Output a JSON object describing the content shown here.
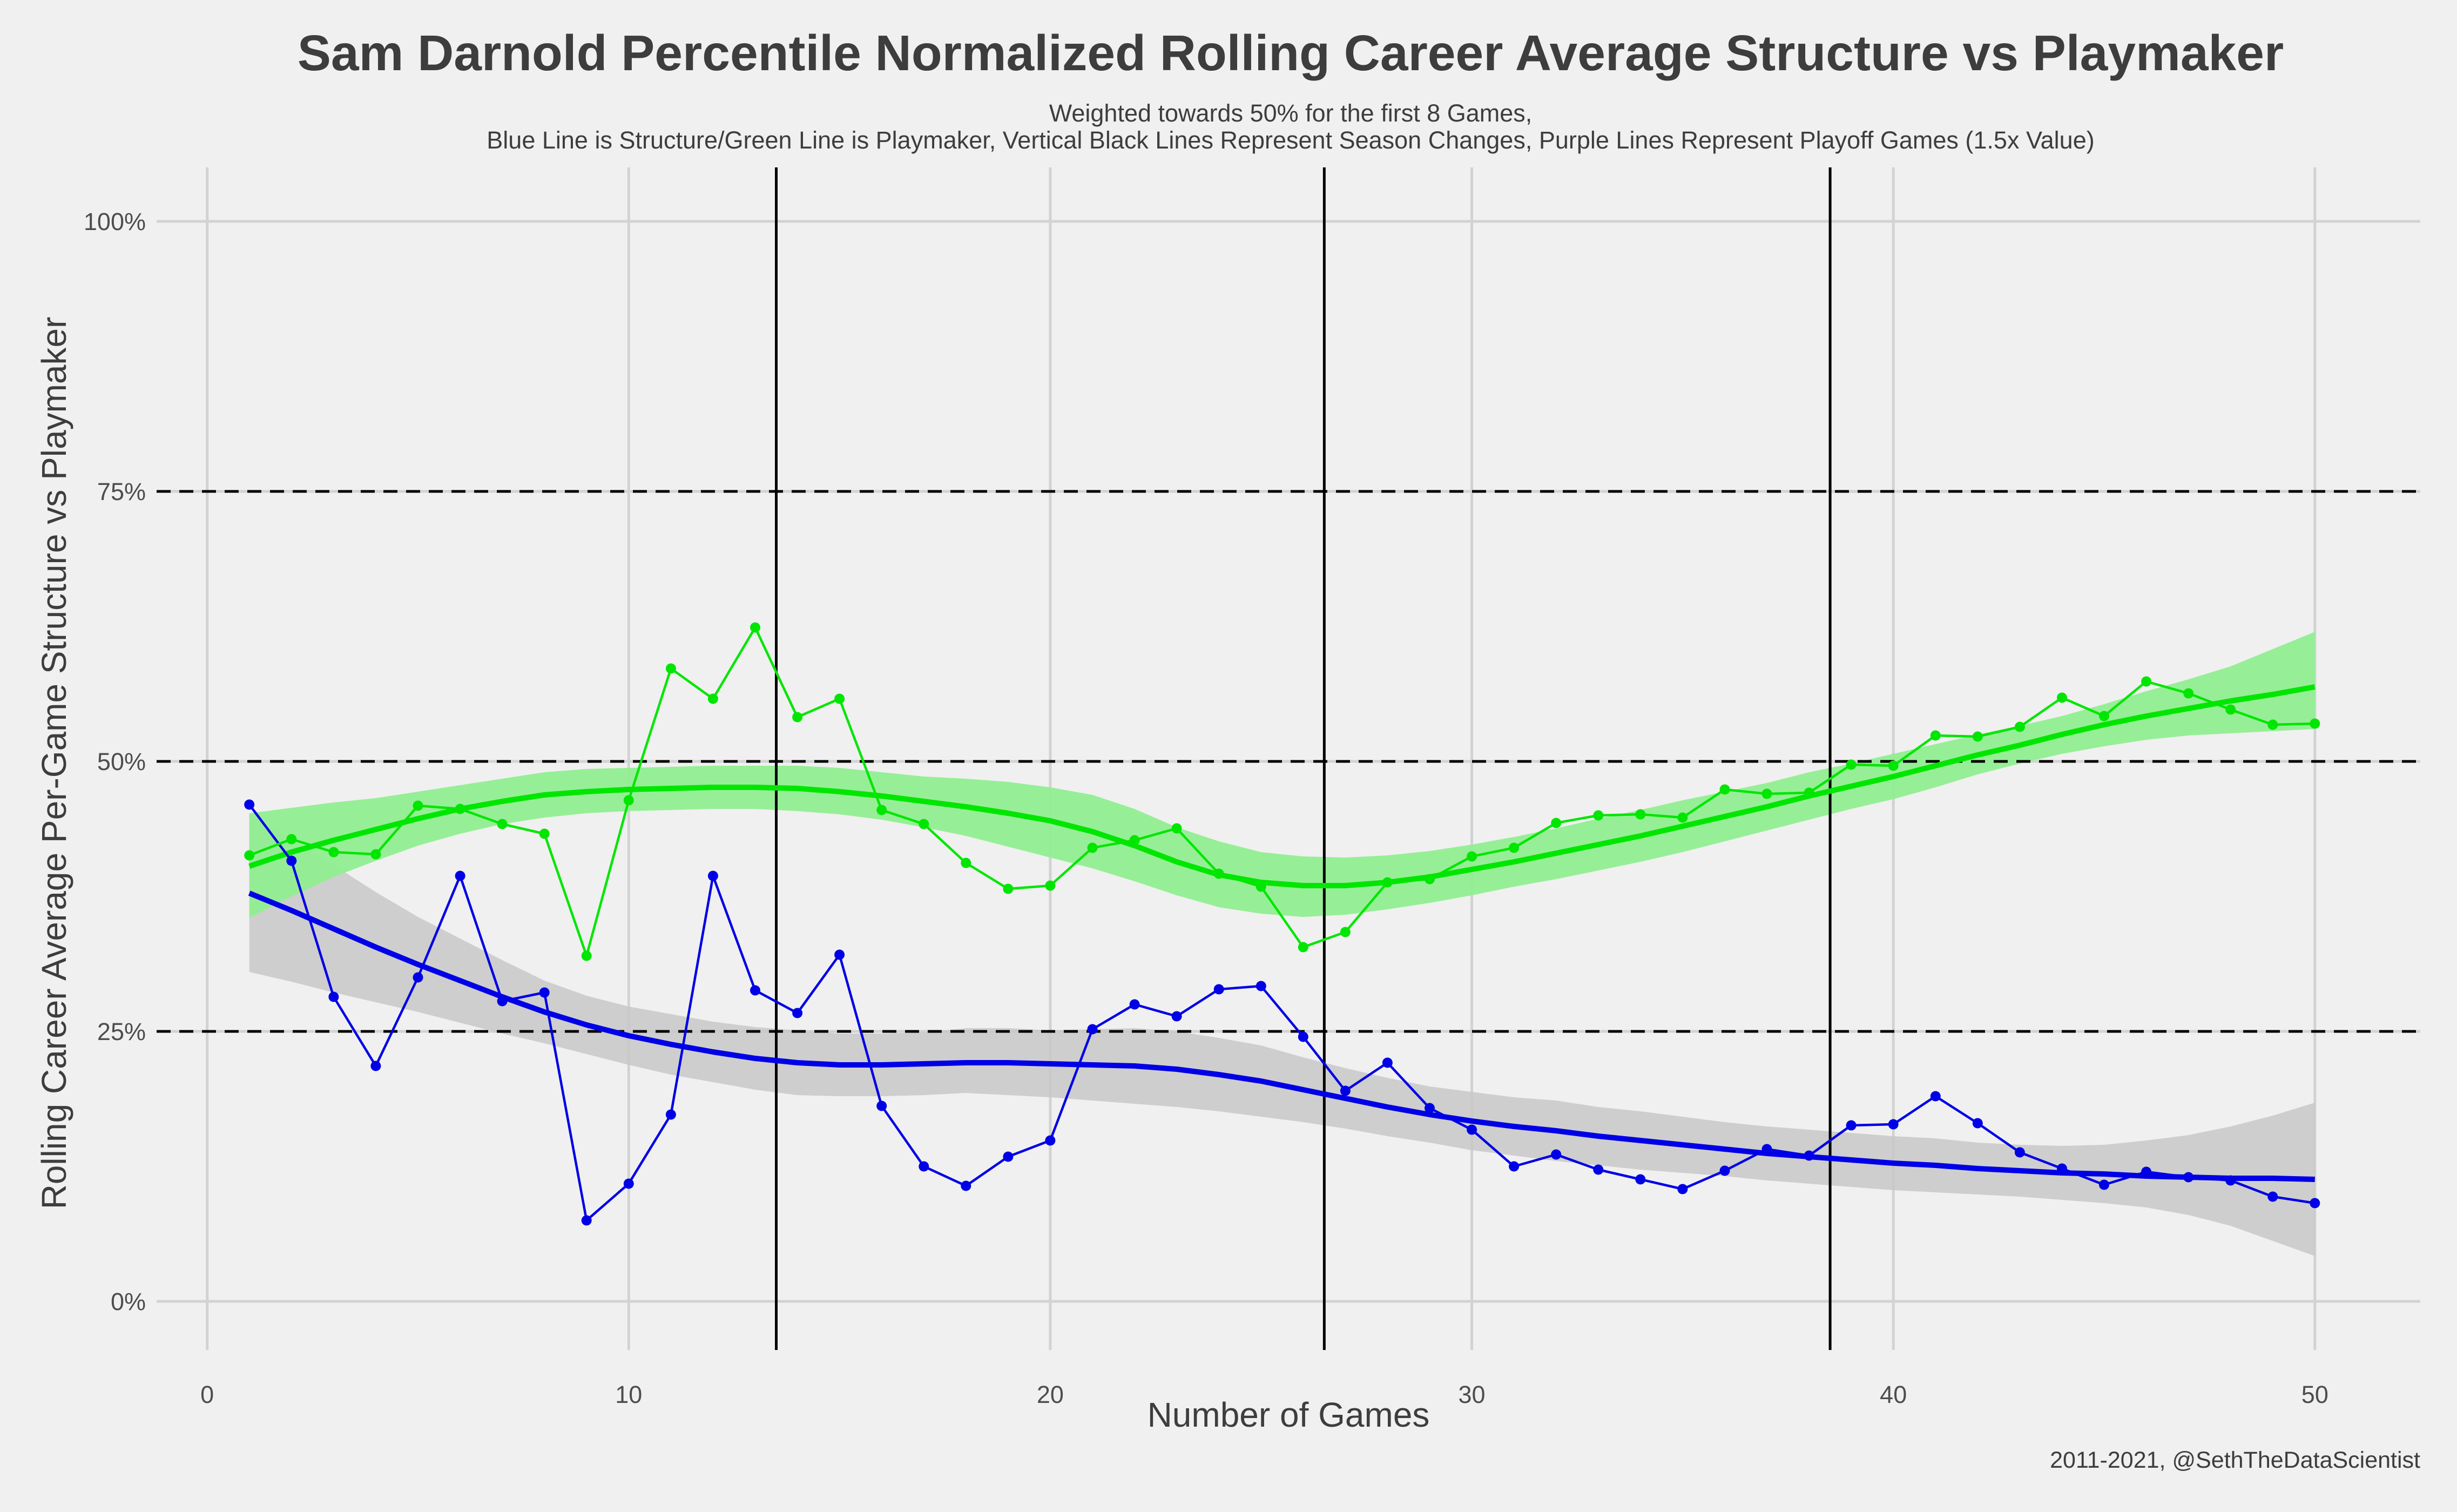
{
  "chart_data": {
    "type": "line",
    "title": "Sam Darnold Percentile Normalized Rolling Career Average Structure vs Playmaker",
    "subtitle_line1": "Weighted towards 50% for the first 8 Games,",
    "subtitle_line2": "Blue Line is Structure/Green Line is Playmaker, Vertical Black Lines Represent Season Changes, Purple Lines Represent Playoff Games (1.5x Value)",
    "xlabel": "Number of Games",
    "ylabel": "Rolling Career Average Per-Game Structure vs Playmaker",
    "caption": "2011-2021, @SethTheDataScientist",
    "xlim": [
      -1.2,
      52.5
    ],
    "ylim": [
      -4.5,
      105
    ],
    "x_ticks": [
      0,
      10,
      20,
      30,
      40,
      50
    ],
    "y_ticks": [
      0,
      25,
      50,
      75,
      100
    ],
    "y_tick_labels": [
      "0%",
      "25%",
      "50%",
      "75%",
      "100%"
    ],
    "reference_lines_y": [
      25,
      50,
      75
    ],
    "season_change_x": [
      13.5,
      26.5,
      38.5
    ],
    "grid": true,
    "colors": {
      "structure": "#0000e6",
      "playmaker": "#00e600",
      "structure_band": "#c8c8c8",
      "playmaker_band": "#90ee90",
      "background": "#f0f0f0"
    },
    "series": [
      {
        "role": "structure",
        "x": [
          1,
          2,
          3,
          4,
          5,
          6,
          7,
          8,
          9,
          10,
          11,
          12,
          13,
          14,
          15,
          16,
          17,
          18,
          19,
          20,
          21,
          22,
          23,
          24,
          25,
          26,
          27,
          28,
          29,
          30,
          31,
          32,
          33,
          34,
          35,
          36,
          37,
          38,
          39,
          40,
          41,
          42,
          43,
          44,
          45,
          46,
          47,
          48,
          49,
          50
        ],
        "values": [
          46,
          40.8,
          28.2,
          21.8,
          30,
          39.4,
          27.8,
          28.6,
          7.5,
          10.9,
          17.3,
          39.4,
          28.8,
          26.7,
          32.1,
          18.1,
          12.5,
          10.7,
          13.4,
          14.9,
          25.2,
          27.5,
          26.4,
          28.9,
          29.2,
          24.5,
          19.5,
          22.1,
          17.9,
          15.9,
          12.5,
          13.6,
          12.2,
          11.3,
          10.4,
          12.1,
          14.1,
          13.5,
          16.3,
          16.4,
          19,
          16.5,
          13.8,
          12.3,
          10.8,
          12,
          11.5,
          11.2,
          9.7,
          9.1
        ],
        "smooth": [
          37.8,
          36.2,
          34.5,
          32.8,
          31.2,
          29.7,
          28.2,
          26.8,
          25.6,
          24.6,
          23.8,
          23.1,
          22.5,
          22.1,
          21.9,
          21.9,
          22,
          22.1,
          22.1,
          22,
          21.9,
          21.8,
          21.5,
          21,
          20.4,
          19.6,
          18.8,
          18,
          17.3,
          16.7,
          16.2,
          15.8,
          15.3,
          14.9,
          14.5,
          14.1,
          13.7,
          13.4,
          13.1,
          12.8,
          12.6,
          12.3,
          12.1,
          11.9,
          11.8,
          11.6,
          11.5,
          11.4,
          11.4,
          11.3
        ],
        "band_low": [
          30.5,
          29.6,
          28.6,
          27.7,
          26.8,
          25.8,
          24.8,
          23.9,
          22.9,
          21.9,
          21,
          20.3,
          19.6,
          19.1,
          19,
          19,
          19.1,
          19.3,
          19.1,
          18.9,
          18.6,
          18.3,
          18,
          17.6,
          17.1,
          16.6,
          16,
          15.3,
          14.7,
          14,
          13.5,
          13,
          12.6,
          12.2,
          11.9,
          11.6,
          11.2,
          10.9,
          10.6,
          10.3,
          10.1,
          9.9,
          9.7,
          9.4,
          9.1,
          8.7,
          8,
          7,
          5.6,
          4.2
        ],
        "band_high": [
          45.1,
          42.8,
          40.4,
          37.9,
          35.6,
          33.6,
          31.6,
          29.7,
          28.3,
          27.3,
          26.6,
          25.9,
          25.4,
          25.1,
          24.8,
          24.8,
          24.9,
          25.3,
          25.3,
          25.1,
          25.2,
          25.3,
          25,
          24.4,
          23.7,
          22.6,
          21.6,
          20.7,
          19.9,
          19.4,
          18.9,
          18.6,
          18,
          17.6,
          17.1,
          16.6,
          16.2,
          15.9,
          15.6,
          15.3,
          15.1,
          14.7,
          14.5,
          14.4,
          14.5,
          14.9,
          15.4,
          16.2,
          17.2,
          18.4
        ]
      },
      {
        "role": "playmaker",
        "x": [
          1,
          2,
          3,
          4,
          5,
          6,
          7,
          8,
          9,
          10,
          11,
          12,
          13,
          14,
          15,
          16,
          17,
          18,
          19,
          20,
          21,
          22,
          23,
          24,
          25,
          26,
          27,
          28,
          29,
          30,
          31,
          32,
          33,
          34,
          35,
          36,
          37,
          38,
          39,
          40,
          41,
          42,
          43,
          44,
          45,
          46,
          47,
          48,
          49,
          50
        ],
        "values": [
          41.3,
          42.8,
          41.6,
          41.4,
          45.9,
          45.6,
          44.2,
          43.3,
          32,
          46.4,
          58.6,
          55.8,
          62.4,
          54.1,
          55.8,
          45.5,
          44.2,
          40.6,
          38.2,
          38.5,
          42,
          42.7,
          43.8,
          39.6,
          38.4,
          32.8,
          34.2,
          38.8,
          39.1,
          41.2,
          42,
          44.3,
          45,
          45.1,
          44.8,
          47.4,
          47,
          47.1,
          49.7,
          49.6,
          52.4,
          52.3,
          53.2,
          55.9,
          54.2,
          57.4,
          56.3,
          54.8,
          53.4,
          53.5
        ],
        "smooth": [
          40.3,
          41.6,
          42.7,
          43.7,
          44.7,
          45.6,
          46.3,
          46.9,
          47.2,
          47.4,
          47.5,
          47.6,
          47.6,
          47.5,
          47.2,
          46.8,
          46.3,
          45.8,
          45.2,
          44.5,
          43.5,
          42.2,
          40.7,
          39.5,
          38.8,
          38.5,
          38.5,
          38.8,
          39.3,
          40,
          40.7,
          41.5,
          42.3,
          43.1,
          44,
          44.9,
          45.8,
          46.8,
          47.7,
          48.6,
          49.6,
          50.6,
          51.5,
          52.5,
          53.4,
          54.2,
          54.9,
          55.6,
          56.2,
          56.9
        ],
        "band_low": [
          35.5,
          37.5,
          39.3,
          40.8,
          42.2,
          43.3,
          44.2,
          44.8,
          45.2,
          45.4,
          45.5,
          45.6,
          45.6,
          45.4,
          45.1,
          44.6,
          43.9,
          43.1,
          42.1,
          41.1,
          40.1,
          38.9,
          37.6,
          36.5,
          35.9,
          35.6,
          35.8,
          36.3,
          36.9,
          37.6,
          38.4,
          39.1,
          39.9,
          40.7,
          41.6,
          42.6,
          43.6,
          44.6,
          45.6,
          46.5,
          47.6,
          48.8,
          49.8,
          50.7,
          51.4,
          52,
          52.4,
          52.6,
          52.8,
          53
        ],
        "band_high": [
          45.2,
          45.7,
          46.2,
          46.6,
          47.2,
          47.8,
          48.4,
          49,
          49.3,
          49.4,
          49.5,
          49.6,
          49.6,
          49.6,
          49.4,
          49,
          48.6,
          48.4,
          48.1,
          47.6,
          46.9,
          45.6,
          43.9,
          42.6,
          41.6,
          41.2,
          41.1,
          41.3,
          41.7,
          42.3,
          43,
          43.8,
          44.7,
          45.5,
          46.4,
          47.2,
          48,
          49,
          49.8,
          50.7,
          51.6,
          52.5,
          53.3,
          54.2,
          55.3,
          56.5,
          57.6,
          58.8,
          60.4,
          62
        ]
      }
    ]
  }
}
